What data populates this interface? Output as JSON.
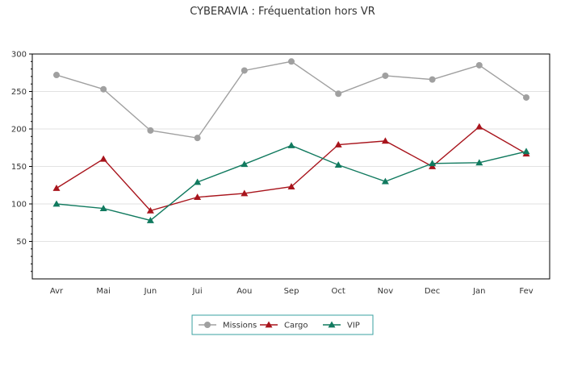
{
  "chart_data": {
    "type": "line",
    "title": "CYBERAVIA : Fréquentation hors VR",
    "xlabel": "",
    "ylabel": "",
    "categories": [
      "Avr",
      "Mai",
      "Jun",
      "Jui",
      "Aou",
      "Sep",
      "Oct",
      "Nov",
      "Dec",
      "Jan",
      "Fev"
    ],
    "ylim": [
      0,
      300
    ],
    "yticks": [
      50,
      100,
      150,
      200,
      250,
      300
    ],
    "grid": true,
    "legend_position": "bottom-center",
    "series": [
      {
        "name": "Missions",
        "color": "#a0a0a0",
        "marker": "circle",
        "values": [
          272,
          253,
          198,
          188,
          278,
          290,
          247,
          271,
          266,
          285,
          242
        ]
      },
      {
        "name": "Cargo",
        "color": "#a8141c",
        "marker": "triangle",
        "values": [
          121,
          160,
          91,
          109,
          114,
          123,
          179,
          184,
          150,
          203,
          167
        ]
      },
      {
        "name": "VIP",
        "color": "#117a5f",
        "marker": "triangle",
        "values": [
          100,
          94,
          78,
          129,
          153,
          178,
          152,
          130,
          154,
          155,
          170
        ]
      }
    ]
  }
}
